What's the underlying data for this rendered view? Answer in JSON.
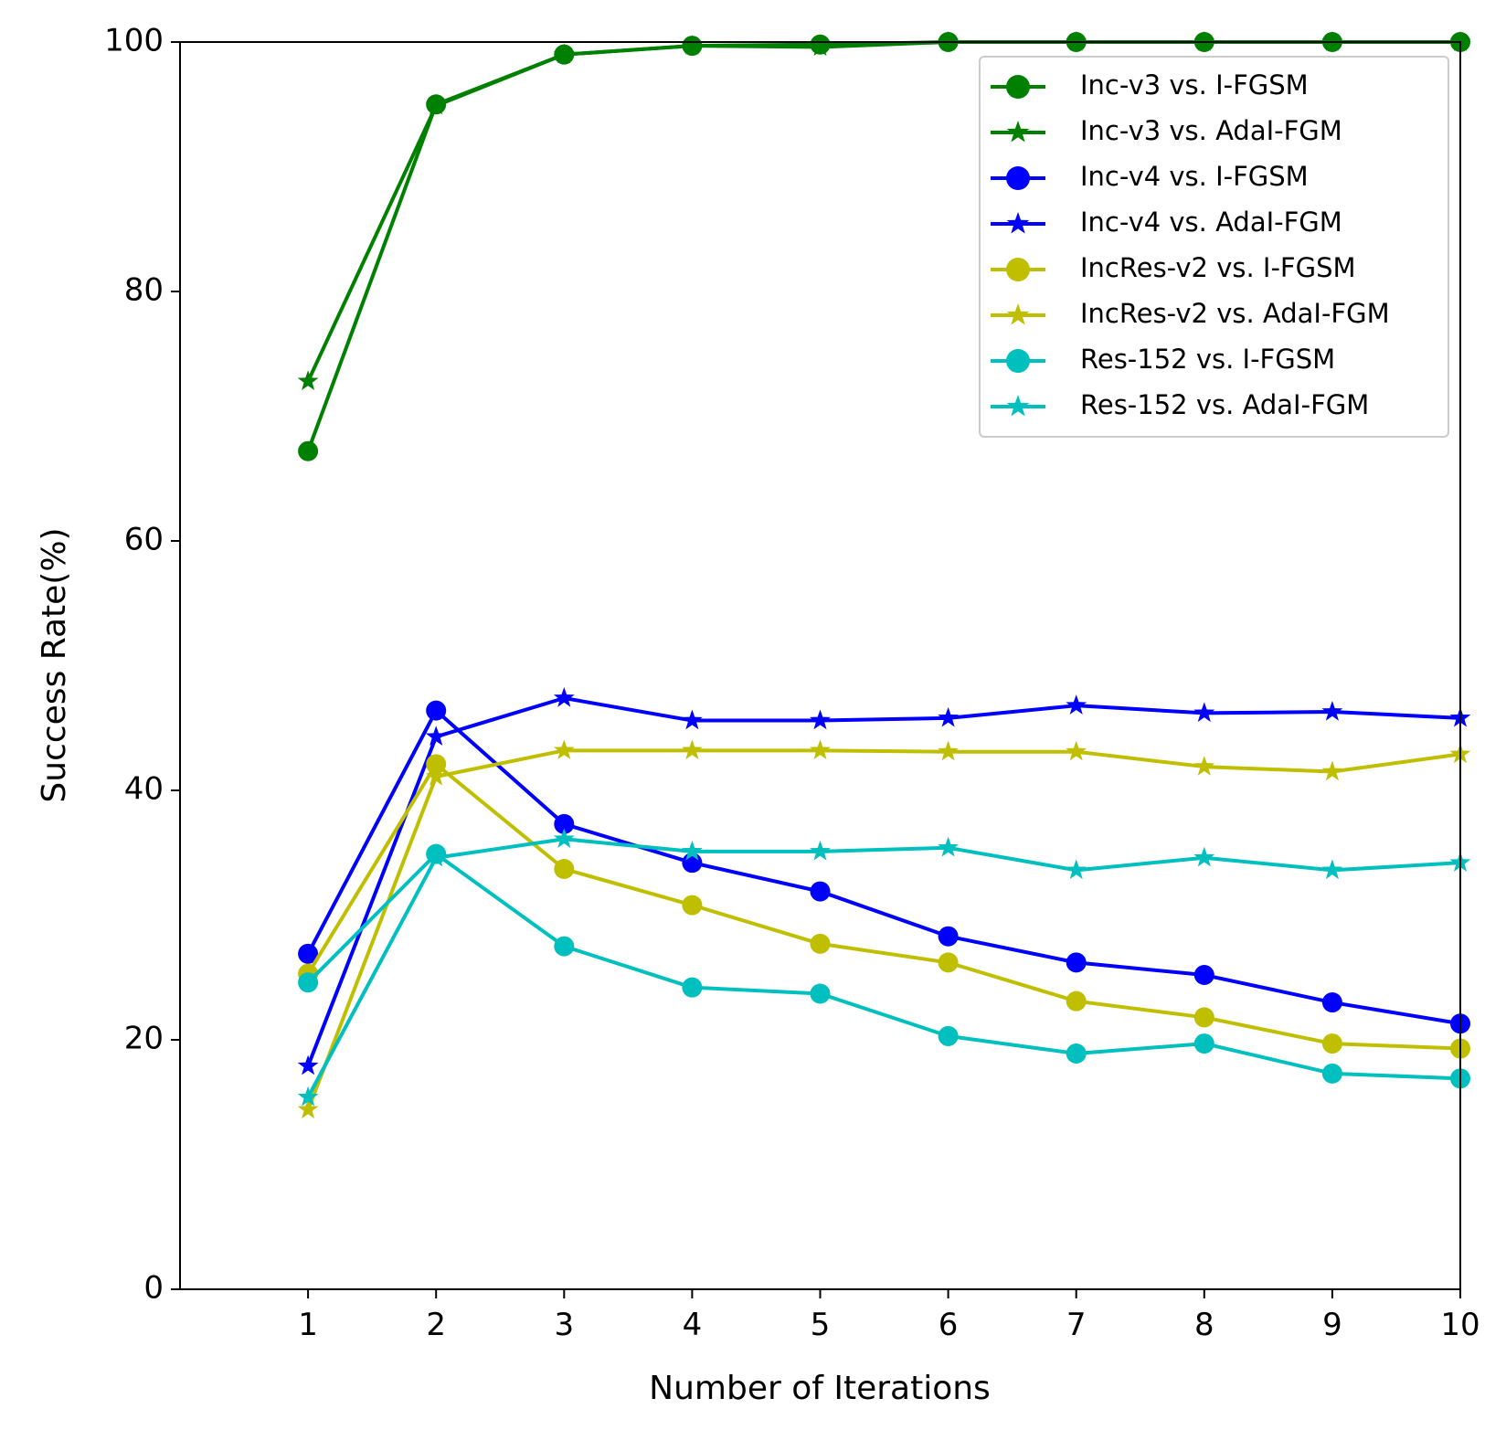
{
  "chart_data": {
    "type": "line",
    "title": "",
    "xlabel": "Number of Iterations",
    "ylabel": "Success Rate(%)",
    "x": [
      1,
      2,
      3,
      4,
      5,
      6,
      7,
      8,
      9,
      10
    ],
    "xlim": [
      0,
      10
    ],
    "ylim": [
      0,
      100
    ],
    "x_ticks": [
      "1",
      "2",
      "3",
      "4",
      "5",
      "6",
      "7",
      "8",
      "9",
      "10"
    ],
    "y_ticks": [
      "0",
      "20",
      "40",
      "60",
      "80",
      "100"
    ],
    "grid": false,
    "legend_position": "top-right",
    "series": [
      {
        "name": "Inc-v3 vs. I-FGSM",
        "color": "#008000",
        "marker": "circle",
        "values": [
          67.2,
          95.0,
          99.0,
          99.7,
          99.8,
          100.0,
          100.0,
          100.0,
          100.0,
          100.0
        ]
      },
      {
        "name": "Inc-v3 vs. AdaI-FGM",
        "color": "#008000",
        "marker": "star",
        "values": [
          72.8,
          94.9,
          99.0,
          99.7,
          99.6,
          100.0,
          100.0,
          100.0,
          100.0,
          100.0
        ]
      },
      {
        "name": "Inc-v4 vs. I-FGSM",
        "color": "#0000ff",
        "marker": "circle",
        "values": [
          26.9,
          46.4,
          37.3,
          34.2,
          31.9,
          28.3,
          26.2,
          25.2,
          23.0,
          21.3
        ]
      },
      {
        "name": "Inc-v4 vs. AdaI-FGM",
        "color": "#0000ff",
        "marker": "star",
        "values": [
          17.9,
          44.3,
          47.4,
          45.6,
          45.6,
          45.8,
          46.8,
          46.2,
          46.3,
          45.8
        ]
      },
      {
        "name": "IncRes-v2 vs. I-FGSM",
        "color": "#bfbf00",
        "marker": "circle",
        "values": [
          25.3,
          42.1,
          33.7,
          30.8,
          27.7,
          26.2,
          23.1,
          21.8,
          19.7,
          19.3
        ]
      },
      {
        "name": "IncRes-v2 vs. AdaI-FGM",
        "color": "#bfbf00",
        "marker": "star",
        "values": [
          14.4,
          41.1,
          43.2,
          43.2,
          43.2,
          43.1,
          43.1,
          41.9,
          41.5,
          42.9
        ]
      },
      {
        "name": "Res-152 vs. I-FGSM",
        "color": "#00bfbf",
        "marker": "circle",
        "values": [
          24.6,
          34.9,
          27.5,
          24.2,
          23.7,
          20.3,
          18.9,
          19.7,
          17.3,
          16.9
        ]
      },
      {
        "name": "Res-152 vs. AdaI-FGM",
        "color": "#00bfbf",
        "marker": "star",
        "values": [
          15.4,
          34.6,
          36.1,
          35.1,
          35.1,
          35.4,
          33.6,
          34.6,
          33.6,
          34.2
        ]
      }
    ]
  }
}
